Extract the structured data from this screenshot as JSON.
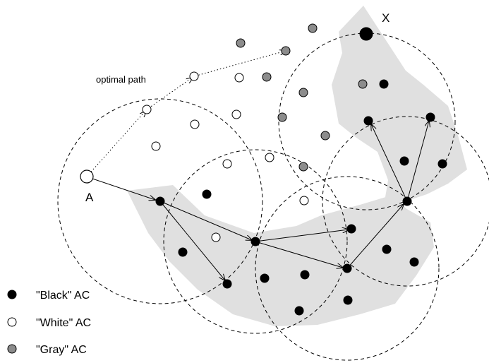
{
  "labels": {
    "start": "A",
    "target": "X",
    "optimal_path": "optimal path"
  },
  "legend": {
    "black": "\"Black\" AC",
    "white": "\"White\" AC",
    "gray": "\"Gray\" AC"
  },
  "colors": {
    "black": "#000000",
    "white": "#ffffff",
    "gray": "#8c8c8c",
    "region": "#e0e0e0"
  }
}
